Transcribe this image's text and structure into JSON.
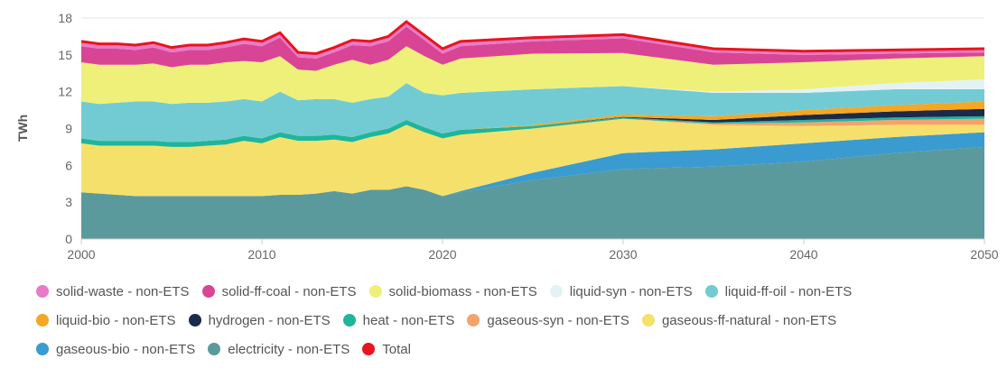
{
  "chart_data": {
    "type": "stacked-area",
    "y_label": "TWh",
    "x": [
      2000,
      2001,
      2002,
      2003,
      2004,
      2005,
      2006,
      2007,
      2008,
      2009,
      2010,
      2011,
      2012,
      2013,
      2014,
      2015,
      2016,
      2017,
      2018,
      2019,
      2020,
      2021,
      2025,
      2030,
      2035,
      2040,
      2045,
      2050
    ],
    "xlim": [
      2000,
      2050
    ],
    "xticks": [
      2000,
      2010,
      2020,
      2030,
      2040,
      2050
    ],
    "ylim": [
      0,
      18
    ],
    "yticks": [
      0,
      3,
      6,
      9,
      12,
      15,
      18
    ],
    "grid": true,
    "series": [
      {
        "name": "solid-waste - non-ETS",
        "color": "#e87ac8",
        "values": [
          0.4,
          0.4,
          0.4,
          0.4,
          0.4,
          0.4,
          0.4,
          0.4,
          0.4,
          0.4,
          0.4,
          0.4,
          0.4,
          0.4,
          0.4,
          0.4,
          0.4,
          0.4,
          0.4,
          0.4,
          0.4,
          0.4,
          0.3,
          0.3,
          0.3,
          0.3,
          0.3,
          0.3
        ]
      },
      {
        "name": "solid-ff-coal - non-ETS",
        "color": "#d94595",
        "values": [
          1.3,
          1.3,
          1.3,
          1.2,
          1.3,
          1.2,
          1.2,
          1.2,
          1.2,
          1.4,
          1.3,
          1.5,
          1.0,
          1.0,
          1.0,
          1.2,
          1.5,
          1.5,
          1.6,
          1.3,
          0.9,
          1.0,
          1.0,
          1.2,
          1.0,
          0.6,
          0.4,
          0.3
        ]
      },
      {
        "name": "solid-biomass - non-ETS",
        "color": "#eef07a",
        "values": [
          3.2,
          3.2,
          3.1,
          3.0,
          3.1,
          3.0,
          3.1,
          3.1,
          3.2,
          3.1,
          3.2,
          2.9,
          2.5,
          2.3,
          2.8,
          3.5,
          2.8,
          3.0,
          3.0,
          3.0,
          2.5,
          2.8,
          2.9,
          2.7,
          2.2,
          2.2,
          2.0,
          1.9
        ]
      },
      {
        "name": "liquid-syn - non-ETS",
        "color": "#e3f3f5",
        "values": [
          0,
          0,
          0,
          0,
          0,
          0,
          0,
          0,
          0,
          0,
          0,
          0,
          0,
          0,
          0,
          0,
          0,
          0,
          0,
          0,
          0,
          0,
          0,
          0,
          0.1,
          0.3,
          0.5,
          0.8
        ]
      },
      {
        "name": "liquid-ff-oil - non-ETS",
        "color": "#72cbd3",
        "values": [
          3.0,
          3.0,
          3.1,
          3.2,
          3.2,
          3.1,
          3.2,
          3.1,
          3.1,
          3.0,
          3.0,
          3.3,
          2.9,
          3.0,
          2.9,
          2.8,
          2.7,
          2.6,
          3.0,
          2.8,
          3.1,
          3.0,
          2.9,
          2.3,
          1.9,
          1.4,
          1.3,
          1.0
        ]
      },
      {
        "name": "liquid-bio - non-ETS",
        "color": "#f5a623",
        "values": [
          0,
          0,
          0,
          0,
          0,
          0,
          0,
          0,
          0,
          0,
          0,
          0,
          0,
          0,
          0,
          0,
          0,
          0,
          0,
          0,
          0,
          0,
          0.1,
          0.2,
          0.3,
          0.4,
          0.5,
          0.6
        ]
      },
      {
        "name": "hydrogen - non-ETS",
        "color": "#1b2a4a",
        "values": [
          0,
          0,
          0,
          0,
          0,
          0,
          0,
          0,
          0,
          0,
          0,
          0,
          0,
          0,
          0,
          0,
          0,
          0,
          0,
          0,
          0,
          0,
          0,
          0.05,
          0.2,
          0.4,
          0.5,
          0.6
        ]
      },
      {
        "name": "heat - non-ETS",
        "color": "#1fb59a",
        "values": [
          0.4,
          0.4,
          0.4,
          0.4,
          0.4,
          0.4,
          0.4,
          0.4,
          0.4,
          0.4,
          0.4,
          0.4,
          0.4,
          0.4,
          0.4,
          0.4,
          0.4,
          0.4,
          0.4,
          0.4,
          0.4,
          0.4,
          0.2,
          0.1,
          0.1,
          0.2,
          0.2,
          0.2
        ]
      },
      {
        "name": "gaseous-syn - non-ETS",
        "color": "#f5a36b",
        "values": [
          0,
          0,
          0,
          0,
          0,
          0,
          0,
          0,
          0,
          0,
          0,
          0,
          0,
          0,
          0,
          0,
          0,
          0,
          0,
          0,
          0,
          0,
          0,
          0,
          0.1,
          0.3,
          0.4,
          0.5
        ]
      },
      {
        "name": "gaseous-ff-natural - non-ETS",
        "color": "#f5e06b",
        "values": [
          4.0,
          3.9,
          4.0,
          4.1,
          4.1,
          4.0,
          4.0,
          4.1,
          4.2,
          4.5,
          4.3,
          4.7,
          4.4,
          4.3,
          4.2,
          4.2,
          4.3,
          4.6,
          5.0,
          4.7,
          4.7,
          4.6,
          3.6,
          2.8,
          2.0,
          1.4,
          1.0,
          0.6
        ]
      },
      {
        "name": "gaseous-bio - non-ETS",
        "color": "#3a9bd0",
        "values": [
          0,
          0,
          0,
          0,
          0,
          0,
          0,
          0,
          0,
          0,
          0,
          0,
          0,
          0,
          0,
          0,
          0,
          0,
          0,
          0,
          0,
          0.1,
          0.6,
          1.3,
          1.4,
          1.5,
          1.3,
          1.2
        ]
      },
      {
        "name": "electricity - non-ETS",
        "color": "#5b9a9c",
        "values": [
          3.8,
          3.7,
          3.6,
          3.5,
          3.5,
          3.5,
          3.5,
          3.5,
          3.5,
          3.5,
          3.5,
          3.6,
          3.6,
          3.7,
          3.9,
          3.7,
          4.0,
          4.0,
          4.3,
          4.0,
          3.5,
          3.8,
          4.8,
          5.7,
          5.9,
          6.3,
          7.0,
          7.5
        ]
      },
      {
        "name": "Total",
        "color": "#e8141e",
        "style": "line",
        "values": [
          16.1,
          15.9,
          15.9,
          15.8,
          16.0,
          15.6,
          15.8,
          15.8,
          16.0,
          16.3,
          16.1,
          16.8,
          15.2,
          15.1,
          15.6,
          16.2,
          16.1,
          16.5,
          17.7,
          16.6,
          15.5,
          16.1,
          16.4,
          16.65,
          15.5,
          15.3,
          15.4,
          15.5
        ]
      }
    ]
  }
}
